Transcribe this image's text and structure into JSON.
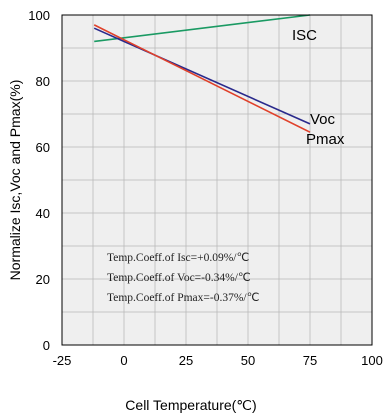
{
  "chart_data": {
    "type": "line",
    "title": "",
    "xlabel": "Cell Temperature(℃)",
    "ylabel": "Normalize Isc,Voc and Pmax(%)",
    "xlim": [
      -25,
      100
    ],
    "ylim": [
      0,
      100
    ],
    "x_ticks": [
      "-25",
      "0",
      "25",
      "50",
      "75",
      "100"
    ],
    "y_ticks": [
      "0",
      "20",
      "40",
      "60",
      "80",
      "100"
    ],
    "grid": true,
    "series": [
      {
        "name": "ISC",
        "color": "#1a9a63",
        "x": [
          -12,
          75
        ],
        "y": [
          92,
          100
        ]
      },
      {
        "name": "Voc",
        "color": "#2a2a8c",
        "x": [
          -12,
          75
        ],
        "y": [
          96,
          67
        ]
      },
      {
        "name": "Pmax",
        "color": "#e0402a",
        "x": [
          -12,
          75
        ],
        "y": [
          97,
          64.5
        ]
      }
    ],
    "annotations": [
      "Temp.Coeff.of Isc=+0.09%/℃",
      "Temp.Coeff.of Voc=-0.34%/℃",
      "Temp.Coeff.of Pmax=-0.37%/℃"
    ]
  }
}
